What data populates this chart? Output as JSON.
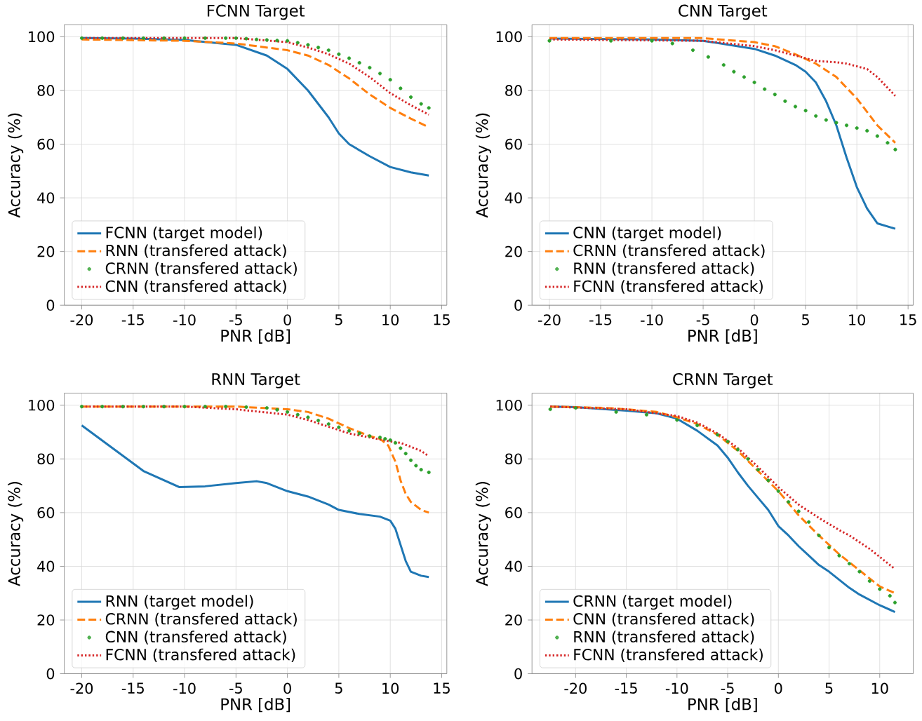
{
  "chart_data": [
    {
      "type": "line",
      "title": "FCNN Target",
      "xlabel": "PNR [dB]",
      "ylabel": "Accuracy (%)",
      "xlim": [
        -21.7,
        15.5
      ],
      "ylim": [
        0,
        104.5
      ],
      "xticks": [
        -20,
        -15,
        -10,
        -5,
        0,
        5,
        10,
        15
      ],
      "yticks": [
        0,
        20,
        40,
        60,
        80,
        100
      ],
      "grid": true,
      "legend": "bottom left",
      "series": [
        {
          "name": "FCNN (target model)",
          "color": "#1f77b4",
          "line_style": "solid",
          "x": [
            -20,
            -15,
            -10,
            -5,
            -2,
            0,
            2,
            4,
            5,
            6,
            8,
            10,
            12,
            13.75
          ],
          "values": [
            99.5,
            99.3,
            98.8,
            97,
            93,
            88,
            80,
            70,
            64,
            60,
            55.5,
            51.5,
            49.5,
            48.3
          ]
        },
        {
          "name": "RNN (transfered attack)",
          "color": "#ff7f0e",
          "line_style": "dashed",
          "x": [
            -20,
            -10,
            -5,
            0,
            2,
            4,
            6,
            8,
            10,
            12,
            13.75
          ],
          "values": [
            99,
            98.5,
            97.5,
            95,
            93,
            89.5,
            84.5,
            78.5,
            73.5,
            69.5,
            66.3
          ]
        },
        {
          "name": "CRNN (transfered attack)",
          "color": "#2ca02c",
          "type": "scatter",
          "marker": "circle",
          "x": [
            -20,
            -18,
            -16,
            -14,
            -12,
            -10,
            -8,
            -6,
            -5,
            -4,
            -3,
            -2,
            -1,
            0,
            1,
            2,
            3,
            4,
            5,
            6,
            7,
            8,
            9,
            10,
            11,
            12,
            13,
            13.75
          ],
          "values": [
            99.5,
            99.5,
            99.5,
            99.5,
            99.5,
            99.5,
            99.5,
            99.5,
            99.5,
            99.3,
            99,
            98.8,
            98.6,
            98.5,
            97.8,
            97,
            96,
            95,
            93.5,
            92,
            90.3,
            88.5,
            86.3,
            84,
            80.8,
            77.5,
            75,
            73.5
          ]
        },
        {
          "name": "CNN (transfered attack)",
          "color": "#d62728",
          "line_style": "dotted",
          "x": [
            -20,
            -5,
            0,
            2,
            4,
            6,
            8,
            10,
            12,
            13.75
          ],
          "values": [
            99.5,
            99.5,
            98,
            96,
            93.5,
            90,
            85,
            79,
            74.5,
            71
          ]
        }
      ]
    },
    {
      "type": "line",
      "title": "CNN Target",
      "xlabel": "PNR [dB]",
      "ylabel": "Accuracy (%)",
      "xlim": [
        -21.7,
        15.5
      ],
      "ylim": [
        0,
        104.5
      ],
      "xticks": [
        -20,
        -15,
        -10,
        -5,
        0,
        5,
        10,
        15
      ],
      "yticks": [
        0,
        20,
        40,
        60,
        80,
        100
      ],
      "grid": true,
      "legend": "bottom left",
      "series": [
        {
          "name": "CNN (target model)",
          "color": "#1f77b4",
          "line_style": "solid",
          "x": [
            -20,
            -10,
            -5,
            0,
            2,
            4,
            5,
            6,
            7,
            8,
            9,
            10,
            11,
            12,
            13.75
          ],
          "values": [
            99.3,
            99,
            98.5,
            95.5,
            93,
            89.5,
            87,
            83,
            76,
            67,
            55,
            44,
            36,
            30.5,
            28.5
          ]
        },
        {
          "name": "CRNN (transfered attack)",
          "color": "#ff7f0e",
          "line_style": "dashed",
          "x": [
            -20,
            -5,
            0,
            2,
            4,
            6,
            8,
            10,
            12,
            13.75
          ],
          "values": [
            99.5,
            99.5,
            98,
            96.5,
            93.5,
            90,
            85,
            77,
            67,
            60.5
          ]
        },
        {
          "name": "RNN (transfered attack)",
          "color": "#2ca02c",
          "type": "scatter",
          "marker": "circle",
          "x": [
            -20,
            -14,
            -10,
            -8,
            -6,
            -4.5,
            -3,
            -2,
            -1,
            0,
            1,
            2,
            3,
            4,
            5,
            6,
            7,
            8,
            9,
            10,
            11,
            12,
            13,
            13.75
          ],
          "values": [
            98.5,
            98.5,
            98.5,
            97.5,
            95,
            92.5,
            89.5,
            87,
            85,
            83,
            80.5,
            78.5,
            76,
            74,
            72.5,
            70.5,
            69,
            68,
            67,
            66,
            65,
            63,
            60.5,
            58
          ]
        },
        {
          "name": "FCNN (transfered attack)",
          "color": "#d62728",
          "line_style": "dotted",
          "x": [
            -20,
            -5,
            0,
            2,
            4,
            6,
            8,
            9,
            10,
            11,
            12,
            13.75
          ],
          "values": [
            99,
            98.5,
            96.5,
            95,
            93,
            91,
            90.5,
            90,
            89,
            88,
            85,
            78
          ]
        }
      ]
    },
    {
      "type": "line",
      "title": "RNN Target",
      "xlabel": "PNR [dB]",
      "ylabel": "Accuracy (%)",
      "xlim": [
        -21.7,
        15.5
      ],
      "ylim": [
        0,
        104.5
      ],
      "xticks": [
        -20,
        -15,
        -10,
        -5,
        0,
        5,
        10,
        15
      ],
      "yticks": [
        0,
        20,
        40,
        60,
        80,
        100
      ],
      "grid": true,
      "legend": "bottom left",
      "series": [
        {
          "name": "RNN (target model)",
          "color": "#1f77b4",
          "line_style": "solid",
          "x": [
            -20,
            -17,
            -14,
            -10.5,
            -8,
            -5,
            -3,
            -2,
            0,
            2,
            4,
            5,
            7,
            9,
            10,
            10.5,
            11,
            11.5,
            12,
            13,
            13.75
          ],
          "values": [
            92.5,
            84,
            75.5,
            69.5,
            69.8,
            71,
            71.7,
            71,
            68,
            66,
            63,
            61,
            59.5,
            58.5,
            57,
            54,
            48,
            42,
            38,
            36.5,
            36
          ]
        },
        {
          "name": "CRNN (transfered attack)",
          "color": "#ff7f0e",
          "line_style": "dashed",
          "x": [
            -20,
            -10,
            -5,
            0,
            2,
            4,
            6,
            8,
            9,
            9.8,
            10.5,
            11,
            11.5,
            12,
            13,
            13.75
          ],
          "values": [
            99.5,
            99.5,
            99.5,
            98.5,
            97.5,
            95,
            91.5,
            88.5,
            87.5,
            85,
            79,
            72,
            67,
            64,
            61,
            60
          ]
        },
        {
          "name": "CNN (transfered attack)",
          "color": "#2ca02c",
          "type": "scatter",
          "marker": "circle",
          "x": [
            -20,
            -18,
            -16,
            -14,
            -12,
            -10,
            -8,
            -6,
            -4,
            -2,
            -1,
            0,
            1,
            2,
            3,
            4,
            5,
            6,
            7,
            8,
            9,
            9.5,
            10,
            10.5,
            11,
            11.5,
            12,
            12.5,
            13,
            13.75
          ],
          "values": [
            99.5,
            99.5,
            99.5,
            99.5,
            99.5,
            99.5,
            99.5,
            99.5,
            99.3,
            99,
            98.3,
            97.5,
            96.5,
            95.5,
            94.3,
            93,
            91.8,
            90.5,
            89.5,
            88.5,
            88,
            87.5,
            87,
            86,
            84,
            82,
            79.5,
            77.5,
            76,
            75
          ]
        },
        {
          "name": "FCNN (transfered attack)",
          "color": "#d62728",
          "line_style": "dotted",
          "x": [
            -20,
            -10,
            -5,
            0,
            2,
            4,
            6,
            8,
            10,
            11,
            12,
            13,
            13.75
          ],
          "values": [
            99.5,
            99.5,
            98.5,
            96.5,
            94.5,
            92,
            89.5,
            88,
            86.5,
            86,
            84.5,
            83,
            81
          ]
        }
      ]
    },
    {
      "type": "line",
      "title": "CRNN Target",
      "xlabel": "PNR [dB]",
      "ylabel": "Accuracy (%)",
      "xlim": [
        -24.3,
        13.3
      ],
      "ylim": [
        0,
        104.5
      ],
      "xticks": [
        -20,
        -15,
        -10,
        -5,
        0,
        5,
        10
      ],
      "yticks": [
        0,
        20,
        40,
        60,
        80,
        100
      ],
      "grid": true,
      "legend": "bottom left",
      "series": [
        {
          "name": "CRNN (target model)",
          "color": "#1f77b4",
          "line_style": "solid",
          "x": [
            -22.5,
            -20,
            -15,
            -12,
            -10,
            -8,
            -6,
            -5,
            -4,
            -3,
            -2,
            -1,
            0,
            1,
            2,
            3,
            4,
            5,
            6,
            7,
            8,
            9,
            10,
            11.5
          ],
          "values": [
            99.5,
            99.3,
            98,
            97,
            95,
            90.5,
            85,
            80.5,
            75,
            70,
            65.5,
            61,
            55,
            51.5,
            47.5,
            44,
            40.5,
            38,
            35,
            32,
            29.5,
            27.5,
            25.5,
            23
          ]
        },
        {
          "name": "CNN (transfered attack)",
          "color": "#ff7f0e",
          "line_style": "dashed",
          "x": [
            -22.5,
            -17,
            -15,
            -12,
            -10,
            -8,
            -6,
            -4,
            -2,
            0,
            2,
            4,
            6,
            8,
            10,
            11.5
          ],
          "values": [
            99.5,
            99,
            98.5,
            97.5,
            95.5,
            93,
            89,
            83,
            75.5,
            68,
            59,
            51.5,
            44.5,
            38.5,
            32.5,
            30
          ]
        },
        {
          "name": "RNN (transfered attack)",
          "color": "#2ca02c",
          "type": "scatter",
          "marker": "circle",
          "x": [
            -22.5,
            -20,
            -16,
            -13,
            -10,
            -8,
            -6,
            -5,
            -4,
            -3,
            -2,
            -1,
            0,
            1,
            2,
            3,
            4,
            5,
            6,
            7,
            8,
            9,
            10,
            11,
            11.5
          ],
          "values": [
            98.5,
            99,
            97.5,
            96.5,
            94.5,
            92.5,
            89,
            86.5,
            83.5,
            80,
            76,
            72,
            68,
            64,
            60.5,
            56.5,
            51.5,
            47,
            44,
            41,
            38,
            34.5,
            31.5,
            29,
            26.5
          ]
        },
        {
          "name": "FCNN (transfered attack)",
          "color": "#d62728",
          "line_style": "dotted",
          "x": [
            -22.5,
            -15,
            -10,
            -8,
            -6,
            -4,
            -2,
            0,
            2,
            4,
            6,
            7,
            8,
            9,
            10,
            11.5
          ],
          "values": [
            99.5,
            98.5,
            96,
            93.5,
            89.5,
            84,
            77,
            69.5,
            63,
            58,
            53.5,
            51.5,
            49,
            46.5,
            43.5,
            39
          ]
        }
      ]
    }
  ]
}
